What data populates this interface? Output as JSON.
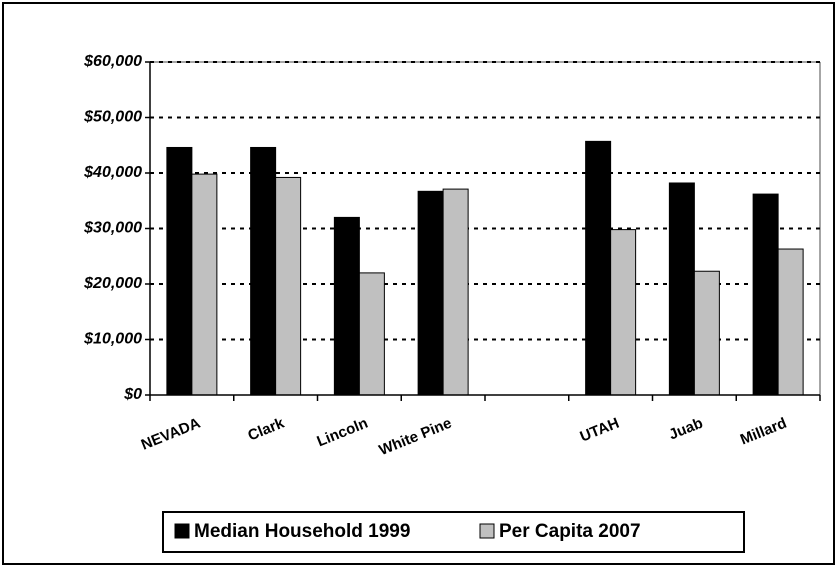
{
  "chart_data": {
    "type": "bar",
    "categories": [
      "NEVADA",
      "Clark",
      "Lincoln",
      "White Pine",
      null,
      "UTAH",
      "Juab",
      "Millard"
    ],
    "series": [
      {
        "name": "Median Household 1999",
        "color": "#000000",
        "values": [
          44600,
          44600,
          32000,
          36700,
          null,
          45700,
          38200,
          36200
        ]
      },
      {
        "name": "Per Capita 2007",
        "color": "#c0c0c0",
        "values": [
          39800,
          39200,
          22000,
          37100,
          null,
          29800,
          22300,
          26300
        ]
      }
    ],
    "ylim": [
      0,
      60000
    ],
    "yticks": [
      {
        "value": 0,
        "label": "$0"
      },
      {
        "value": 10000,
        "label": "$10,000"
      },
      {
        "value": 20000,
        "label": "$20,000"
      },
      {
        "value": 30000,
        "label": "$30,000"
      },
      {
        "value": 40000,
        "label": "$40,000"
      },
      {
        "value": 50000,
        "label": "$50,000"
      },
      {
        "value": 60000,
        "label": "$60,000"
      }
    ],
    "grid": true,
    "legend": "bottom"
  }
}
